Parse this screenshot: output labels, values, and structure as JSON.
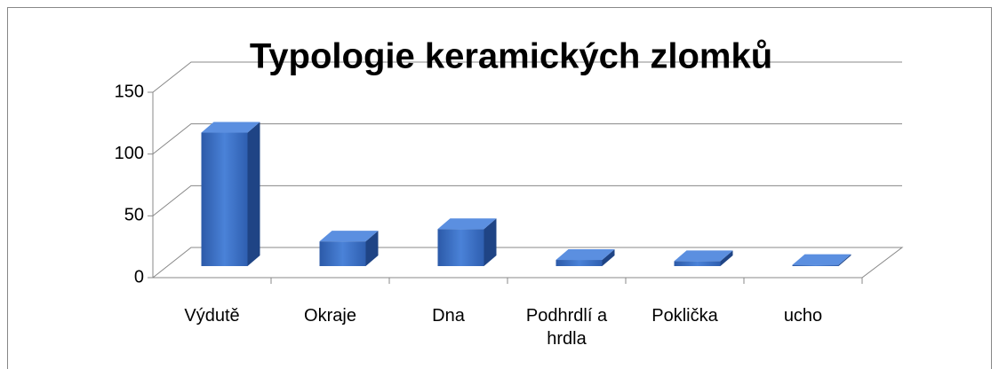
{
  "chart_data": {
    "type": "bar3d",
    "title": "Typologie keramických zlomků",
    "categories": [
      "Výdutě",
      "Okraje",
      "Dna",
      "Podhrdlí a hrdla",
      "Poklička",
      "ucho"
    ],
    "values": [
      108,
      20,
      30,
      5,
      4,
      1
    ],
    "color": "#3a6fc4",
    "ylim": [
      0,
      150
    ],
    "yticks": [
      0,
      50,
      100,
      150
    ],
    "grid": true
  }
}
